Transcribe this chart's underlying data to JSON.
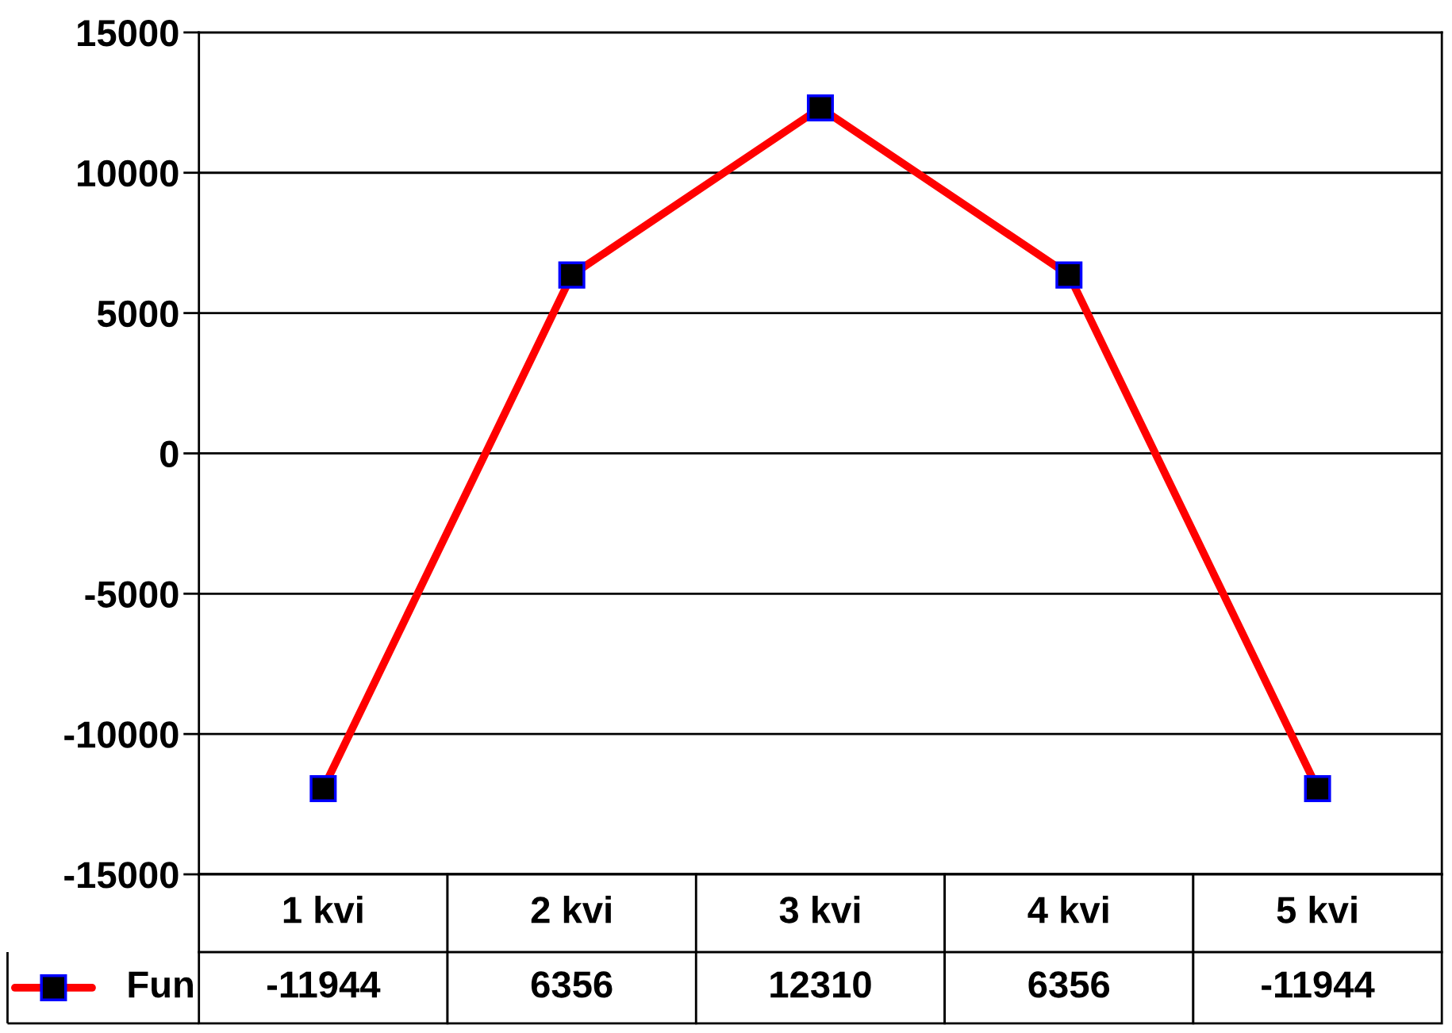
{
  "chart_data": {
    "type": "line",
    "categories": [
      "1 kvi",
      "2 kvi",
      "3 kvi",
      "4 kvi",
      "5 kvi"
    ],
    "series": [
      {
        "name": "Fun",
        "color": "#ff0000",
        "values": [
          -11944,
          6356,
          12310,
          6356,
          -11944
        ]
      }
    ],
    "ylim": [
      -15000,
      15000
    ],
    "yticks": [
      -15000,
      -10000,
      -5000,
      0,
      5000,
      10000,
      15000
    ],
    "grid": "y",
    "marker": "square",
    "line_style": "solid",
    "data_labels": true,
    "legend": "bottom left"
  }
}
